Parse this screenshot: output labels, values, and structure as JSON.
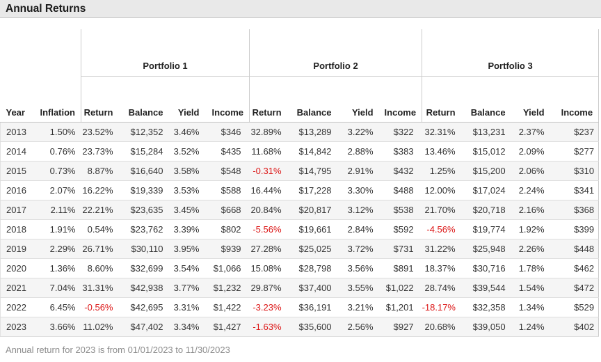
{
  "title_bar": {
    "title": "Annual Returns"
  },
  "table": {
    "groups": [
      {
        "label": "Portfolio 1"
      },
      {
        "label": "Portfolio 2"
      },
      {
        "label": "Portfolio 3"
      }
    ],
    "columns": [
      "Year",
      "Inflation",
      "Return",
      "Balance",
      "Yield",
      "Income",
      "Return",
      "Balance",
      "Yield",
      "Income",
      "Return",
      "Balance",
      "Yield",
      "Income"
    ],
    "rows": [
      [
        "2013",
        "1.50%",
        "23.52%",
        "$12,352",
        "3.46%",
        "$346",
        "32.89%",
        "$13,289",
        "3.22%",
        "$322",
        "32.31%",
        "$13,231",
        "2.37%",
        "$237"
      ],
      [
        "2014",
        "0.76%",
        "23.73%",
        "$15,284",
        "3.52%",
        "$435",
        "11.68%",
        "$14,842",
        "2.88%",
        "$383",
        "13.46%",
        "$15,012",
        "2.09%",
        "$277"
      ],
      [
        "2015",
        "0.73%",
        "8.87%",
        "$16,640",
        "3.58%",
        "$548",
        "-0.31%",
        "$14,795",
        "2.91%",
        "$432",
        "1.25%",
        "$15,200",
        "2.06%",
        "$310"
      ],
      [
        "2016",
        "2.07%",
        "16.22%",
        "$19,339",
        "3.53%",
        "$588",
        "16.44%",
        "$17,228",
        "3.30%",
        "$488",
        "12.00%",
        "$17,024",
        "2.24%",
        "$341"
      ],
      [
        "2017",
        "2.11%",
        "22.21%",
        "$23,635",
        "3.45%",
        "$668",
        "20.84%",
        "$20,817",
        "3.12%",
        "$538",
        "21.70%",
        "$20,718",
        "2.16%",
        "$368"
      ],
      [
        "2018",
        "1.91%",
        "0.54%",
        "$23,762",
        "3.39%",
        "$802",
        "-5.56%",
        "$19,661",
        "2.84%",
        "$592",
        "-4.56%",
        "$19,774",
        "1.92%",
        "$399"
      ],
      [
        "2019",
        "2.29%",
        "26.71%",
        "$30,110",
        "3.95%",
        "$939",
        "27.28%",
        "$25,025",
        "3.72%",
        "$731",
        "31.22%",
        "$25,948",
        "2.26%",
        "$448"
      ],
      [
        "2020",
        "1.36%",
        "8.60%",
        "$32,699",
        "3.54%",
        "$1,066",
        "15.08%",
        "$28,798",
        "3.56%",
        "$891",
        "18.37%",
        "$30,716",
        "1.78%",
        "$462"
      ],
      [
        "2021",
        "7.04%",
        "31.31%",
        "$42,938",
        "3.77%",
        "$1,232",
        "29.87%",
        "$37,400",
        "3.55%",
        "$1,022",
        "28.74%",
        "$39,544",
        "1.54%",
        "$472"
      ],
      [
        "2022",
        "6.45%",
        "-0.56%",
        "$42,695",
        "3.31%",
        "$1,422",
        "-3.23%",
        "$36,191",
        "3.21%",
        "$1,201",
        "-18.17%",
        "$32,358",
        "1.34%",
        "$529"
      ],
      [
        "2023",
        "3.66%",
        "11.02%",
        "$47,402",
        "3.34%",
        "$1,427",
        "-1.63%",
        "$35,600",
        "2.56%",
        "$927",
        "20.68%",
        "$39,050",
        "1.24%",
        "$402"
      ]
    ]
  },
  "footnote": "Annual return for 2023 is from 01/01/2023 to 11/30/2023",
  "colors": {
    "negative_value": "#dc1616",
    "header_bar_bg": "#e9e9e9",
    "row_stripe": "#f5f5f5",
    "border": "#cccccc"
  }
}
